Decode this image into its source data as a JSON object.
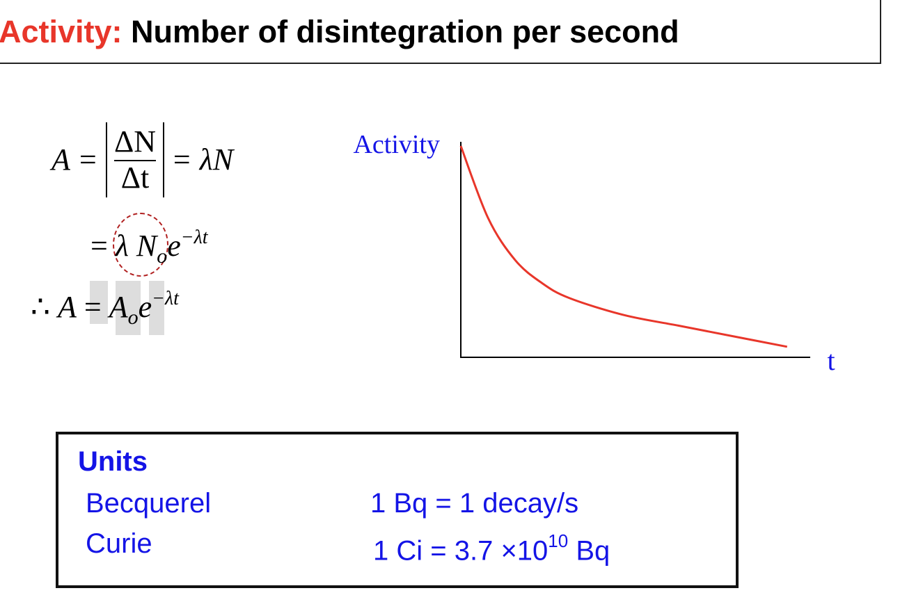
{
  "slide": {
    "title_accent": "Activity:",
    "title_rest": " Number of disintegration per second"
  },
  "equations": {
    "line1": {
      "lhs": "A =",
      "numerator": "ΔN",
      "denominator": "Δt",
      "rhs": "= λN"
    },
    "line2": {
      "eq": "=",
      "lambda": "λ N",
      "sub": "o",
      "e": "e",
      "exp": "−λt"
    },
    "line3": {
      "therefore": "∴",
      "lhs": "A",
      "eq": "=",
      "a": "A",
      "sub": "o",
      "e": "e",
      "exp": "−λt"
    }
  },
  "chart_data": {
    "type": "line",
    "ylabel": "Activity",
    "xlabel": "t",
    "series": [
      {
        "values": [
          {
            "x": 0,
            "y": 1.0
          },
          {
            "x": 0.5,
            "y": 0.66
          },
          {
            "x": 1,
            "y": 0.46
          },
          {
            "x": 1.5,
            "y": 0.35
          },
          {
            "x": 2,
            "y": 0.28
          },
          {
            "x": 3,
            "y": 0.2
          },
          {
            "x": 4,
            "y": 0.15
          },
          {
            "x": 5,
            "y": 0.1
          },
          {
            "x": 6,
            "y": 0.05
          }
        ],
        "color": "#e8362a"
      }
    ],
    "xlim": [
      0,
      6.4
    ],
    "ylim": [
      0,
      1.0
    ],
    "grid": false,
    "axis_color": "#000000",
    "label_color": "#1414e6"
  },
  "units": {
    "title": "Units",
    "rows": [
      {
        "name": "Becquerel",
        "def": "1 Bq = 1 decay/s"
      },
      {
        "name": "Curie",
        "def_prefix": "1 Ci = 3.7 ×10",
        "def_sup": "10",
        "def_suffix": " Bq"
      }
    ]
  }
}
